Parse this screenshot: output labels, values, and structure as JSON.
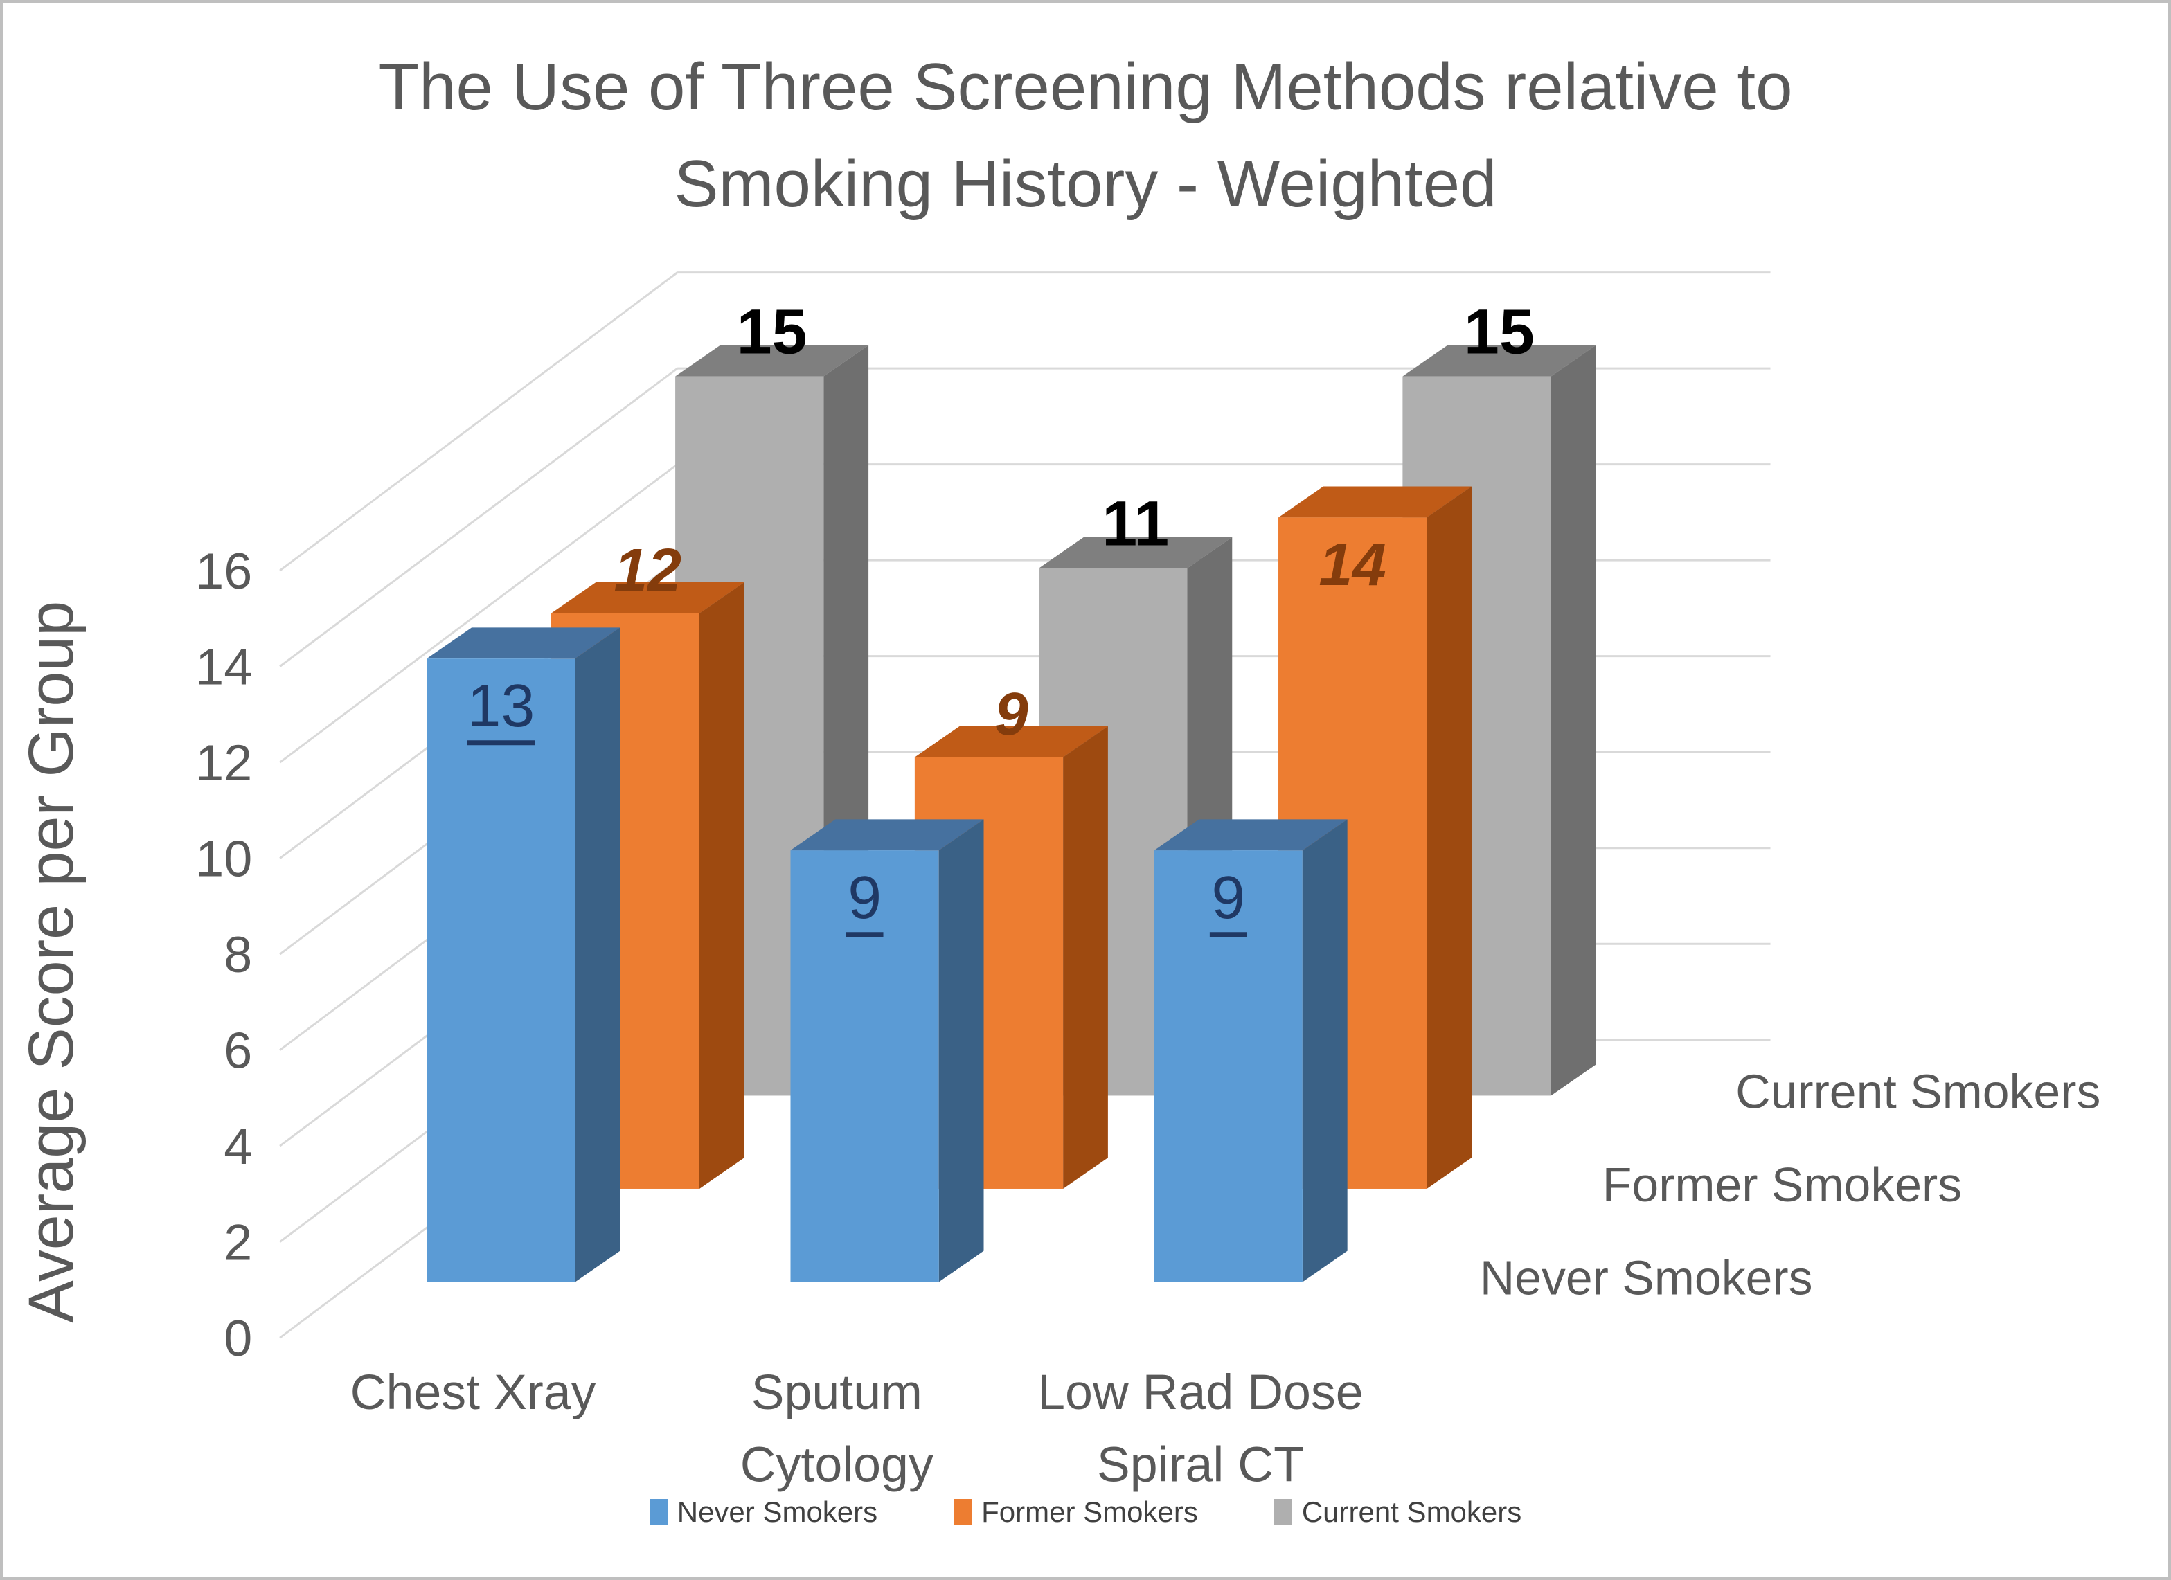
{
  "page": {
    "background": "#FFFFFF",
    "border_color": "#BFBFBF"
  },
  "chart_data": {
    "type": "bar",
    "projection": "3d",
    "title": "The Use of Three Screening Methods relative to Smoking History - Weighted",
    "title_lines": [
      "The Use of Three Screening Methods relative to",
      "Smoking History - Weighted"
    ],
    "title_color": "#595959",
    "axis_text_color": "#595959",
    "grid_color": "#D9D9D9",
    "grid": true,
    "xlabel": "",
    "ylabel": "Average Score per Group",
    "ylim": [
      0,
      16
    ],
    "yticks": [
      0,
      2,
      4,
      6,
      8,
      10,
      12,
      14,
      16
    ],
    "categories": [
      "Chest Xray",
      "Sputum Cytology",
      "Low Rad Dose Spiral CT"
    ],
    "category_lines": [
      [
        "Chest Xray"
      ],
      [
        "Sputum",
        "Cytology"
      ],
      [
        "Low Rad Dose",
        "Spiral CT"
      ]
    ],
    "series": [
      {
        "name": "Never Smokers",
        "values": [
          13,
          9,
          9
        ],
        "color_front": "#5B9BD5",
        "color_top": "#46719F",
        "color_side": "#3A6186",
        "label_color": "#1F3864",
        "label_style": "underline",
        "label_placements": [
          "inside",
          "inside",
          "inside"
        ]
      },
      {
        "name": "Former Smokers",
        "values": [
          12,
          9,
          14
        ],
        "color_front": "#ED7D31",
        "color_top": "#C05B17",
        "color_side": "#9E4A10",
        "label_color": "#843C0C",
        "label_style": "bold-italic",
        "label_placements": [
          "above",
          "above",
          "inside"
        ]
      },
      {
        "name": "Current Smokers",
        "values": [
          15,
          11,
          15
        ],
        "color_front": "#AFAFAF",
        "color_top": "#7F7F7F",
        "color_side": "#6F6F6F",
        "label_color": "#000000",
        "label_style": "bold",
        "label_placements": [
          "above",
          "above",
          "above"
        ]
      }
    ],
    "depth_axis_labels": [
      "Never Smokers",
      "Former Smokers",
      "Current Smokers"
    ],
    "legend": {
      "position": "bottom",
      "items": [
        "Never Smokers",
        "Former Smokers",
        "Current Smokers"
      ]
    }
  }
}
